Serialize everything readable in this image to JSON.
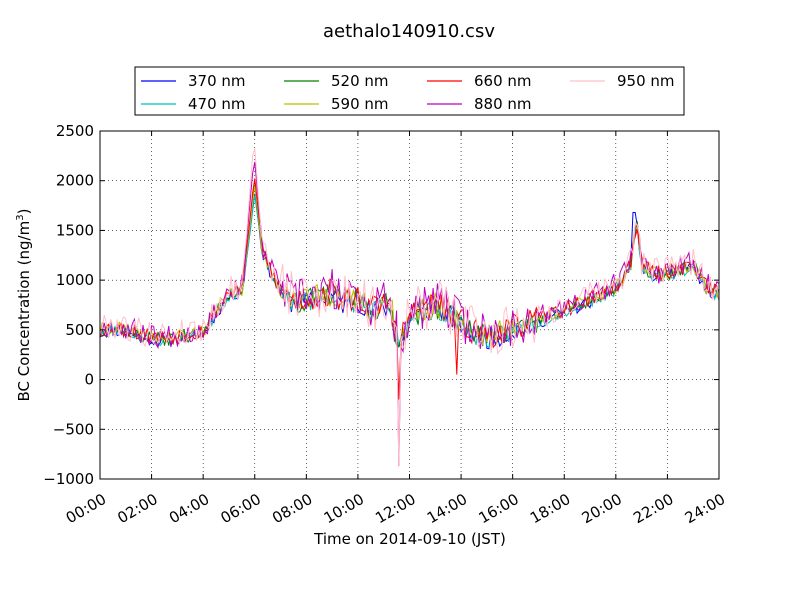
{
  "chart_data": {
    "type": "line",
    "title": "aethalo140910.csv",
    "xlabel": "Time on 2014-09-10 (JST)",
    "ylabel": "BC Concentration (ng/m",
    "ylabel_superscript": "3",
    "ylabel_suffix": ")",
    "xlim": [
      0,
      24
    ],
    "ylim": [
      -1000,
      2500
    ],
    "x_unit": "hours",
    "x_ticks": [
      0,
      2,
      4,
      6,
      8,
      10,
      12,
      14,
      16,
      18,
      20,
      22,
      24
    ],
    "x_tick_labels": [
      "00:00",
      "02:00",
      "04:00",
      "06:00",
      "08:00",
      "10:00",
      "12:00",
      "14:00",
      "16:00",
      "18:00",
      "20:00",
      "22:00",
      "24:00"
    ],
    "y_ticks": [
      -1000,
      -500,
      0,
      500,
      1000,
      1500,
      2000,
      2500
    ],
    "y_tick_labels": [
      "−1000",
      "−500",
      "0",
      "500",
      "1000",
      "1500",
      "2000",
      "2500"
    ],
    "grid": true,
    "grid_style": "dotted",
    "legend_position": "top, above plot",
    "base_profile": {
      "x": [
        0,
        0.5,
        1,
        1.5,
        2,
        2.5,
        3,
        3.5,
        4,
        4.5,
        5,
        5.5,
        5.8,
        6,
        6.3,
        6.6,
        7,
        7.5,
        8,
        8.5,
        9,
        9.5,
        10,
        10.5,
        11,
        11.3,
        11.6,
        12,
        12.5,
        13,
        13.5,
        14,
        14.5,
        15,
        15.5,
        16,
        16.5,
        17,
        17.5,
        18,
        18.5,
        19,
        19.5,
        20,
        20.3,
        20.6,
        20.8,
        21,
        21.5,
        22,
        22.5,
        23,
        23.5,
        24
      ],
      "y": [
        480,
        520,
        490,
        450,
        420,
        400,
        430,
        450,
        480,
        680,
        860,
        900,
        1400,
        1820,
        1300,
        1100,
        900,
        780,
        800,
        820,
        870,
        760,
        820,
        690,
        760,
        700,
        330,
        640,
        680,
        740,
        680,
        560,
        480,
        430,
        460,
        500,
        560,
        590,
        650,
        700,
        740,
        800,
        860,
        920,
        1020,
        1180,
        1600,
        1150,
        1050,
        1070,
        1100,
        1150,
        930,
        850
      ],
      "note": ""
    },
    "series": [
      {
        "name": "370 nm",
        "color": "#0000ff",
        "offset": -20,
        "noise": 60,
        "spike": 1.0,
        "peak": 1890,
        "seed": 11
      },
      {
        "name": "470 nm",
        "color": "#00bfbf",
        "offset": -10,
        "noise": 65,
        "spike": 1.0,
        "peak": 1870,
        "seed": 23
      },
      {
        "name": "520 nm",
        "color": "#008000",
        "offset": 0,
        "noise": 70,
        "spike": 1.02,
        "peak": 1980,
        "seed": 37
      },
      {
        "name": "590 nm",
        "color": "#bfbf00",
        "offset": 10,
        "noise": 75,
        "spike": 1.04,
        "peak": 1900,
        "seed": 41
      },
      {
        "name": "660 nm",
        "color": "#ff0000",
        "offset": 15,
        "noise": 80,
        "spike": 1.06,
        "peak": 1960,
        "seed": 53
      },
      {
        "name": "880 nm",
        "color": "#bf00bf",
        "offset": 30,
        "noise": 120,
        "spike": 1.1,
        "peak": 2100,
        "seed": 67
      },
      {
        "name": "950 nm",
        "color": "#ffc0cb",
        "offset": 40,
        "noise": 140,
        "spike": 1.12,
        "peak": 2250,
        "seed": 79
      }
    ],
    "notable_events": [
      {
        "x": 5.9,
        "label": "morning peak ~2000"
      },
      {
        "x": 11.6,
        "label": "negative spike to ~-870"
      },
      {
        "x": 13.8,
        "label": "dip to ~50"
      },
      {
        "x": 20.7,
        "label": "evening peak ~1680"
      }
    ]
  },
  "legend": {
    "items": [
      "370 nm",
      "520 nm",
      "660 nm",
      "950 nm",
      "470 nm",
      "590 nm",
      "880 nm"
    ],
    "order_columns": [
      [
        "370 nm",
        "470 nm"
      ],
      [
        "520 nm",
        "590 nm"
      ],
      [
        "660 nm",
        "880 nm"
      ],
      [
        "950 nm"
      ]
    ]
  }
}
